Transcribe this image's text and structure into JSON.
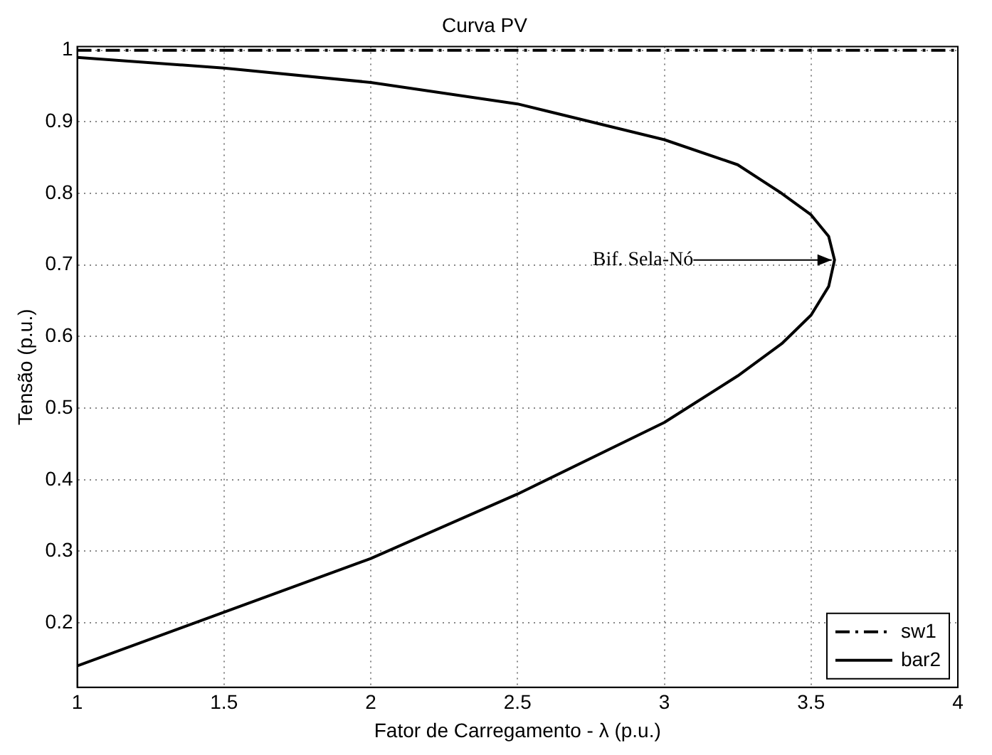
{
  "chart_data": {
    "type": "line",
    "title": "Curva PV",
    "xlabel": "Fator de Carregamento - λ (p.u.)",
    "ylabel": "Tensão (p.u.)",
    "xlim": [
      1,
      4
    ],
    "xticks": [
      1,
      1.5,
      2,
      2.5,
      3,
      3.5,
      4
    ],
    "ylim": [
      0.11,
      1.005
    ],
    "yticks": [
      0.2,
      0.3,
      0.4,
      0.5,
      0.6,
      0.7,
      0.8,
      0.9,
      1
    ],
    "grid": true,
    "legend": "bottom right",
    "marker": "none",
    "series": [
      {
        "name": "sw1",
        "color": "#000000",
        "line_style": "dashdot",
        "x": [
          1,
          4
        ],
        "values": [
          1,
          1
        ]
      },
      {
        "name": "bar2",
        "color": "#000000",
        "line_style": "solid",
        "x": [
          1,
          1.5,
          2,
          2.5,
          3,
          3.25,
          3.4,
          3.5,
          3.56,
          3.58,
          3.56,
          3.5,
          3.4,
          3.25,
          3,
          2.5,
          2,
          1.5,
          1
        ],
        "values": [
          0.99,
          0.975,
          0.955,
          0.925,
          0.875,
          0.84,
          0.8,
          0.77,
          0.74,
          0.707,
          0.67,
          0.63,
          0.59,
          0.545,
          0.48,
          0.38,
          0.29,
          0.215,
          0.14
        ]
      }
    ],
    "annotations": [
      {
        "text": "Bif. Sela-Nó",
        "x": 3.58,
        "y": 0.707
      }
    ]
  }
}
